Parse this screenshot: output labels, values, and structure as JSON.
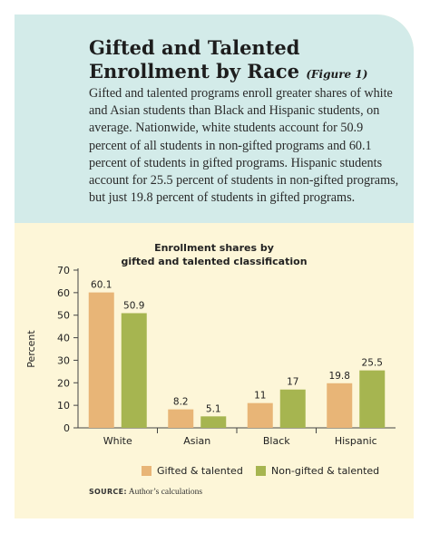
{
  "header": {
    "title": "Gifted and Talented Enrollment by Race",
    "figure_label": "(Figure 1)",
    "description": "Gifted and talented programs enroll greater shares of white and Asian students than Black and Hispanic students, on average. Nationwide, white students account for 50.9 percent of all students in non-gifted programs and 60.1 percent of students in gifted programs. Hispanic students account for 25.5 percent of students in non-gifted programs, but just 19.8 percent of students in gifted programs."
  },
  "chart_data": {
    "type": "bar",
    "title_line1": "Enrollment shares by",
    "title_line2": "gifted and talented classification",
    "ylabel": "Percent",
    "xlabel": "",
    "ylim": [
      0,
      70
    ],
    "yticks": [
      0,
      10,
      20,
      30,
      40,
      50,
      60,
      70
    ],
    "categories": [
      "White",
      "Asian",
      "Black",
      "Hispanic"
    ],
    "series": [
      {
        "name": "Gifted & talented",
        "color": "#e8b577",
        "values": [
          60.1,
          8.2,
          11,
          19.8
        ],
        "labels": [
          "60.1",
          "8.2",
          "11",
          "19.8"
        ]
      },
      {
        "name": "Non-gifted & talented",
        "color": "#a6b550",
        "values": [
          50.9,
          5.1,
          17,
          25.5
        ],
        "labels": [
          "50.9",
          "5.1",
          "17",
          "25.5"
        ]
      }
    ],
    "grid": false,
    "legend_position": "bottom"
  },
  "source": {
    "label": "SOURCE:",
    "text": "Author’s calculations"
  }
}
